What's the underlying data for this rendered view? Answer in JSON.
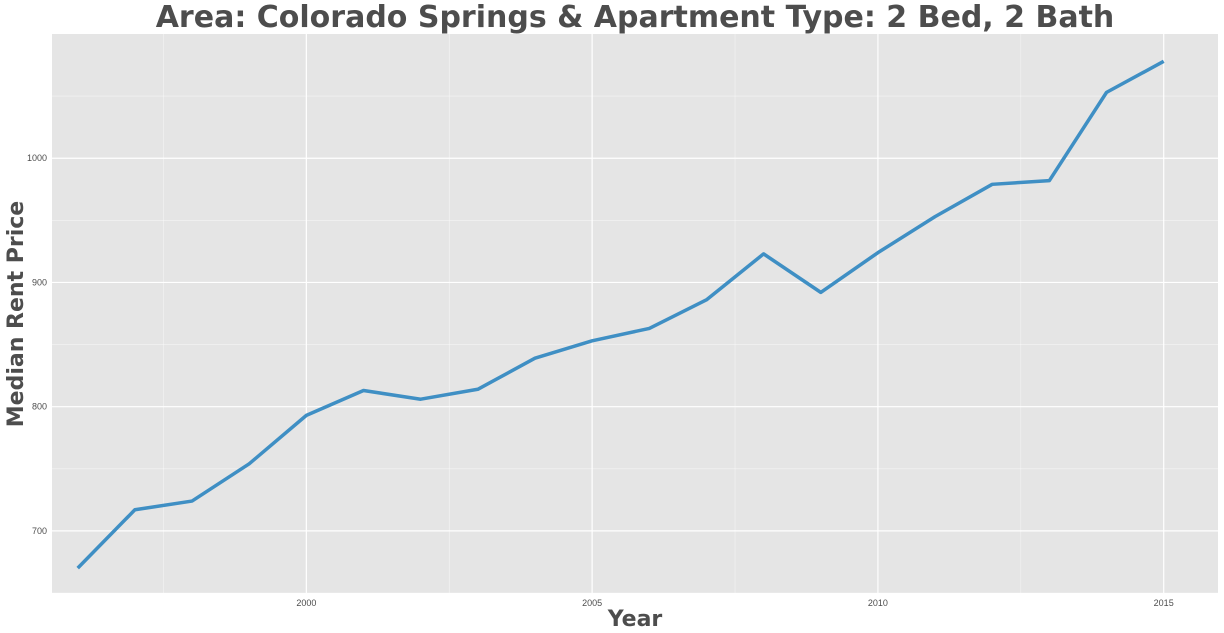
{
  "chart_data": {
    "type": "line",
    "title": "Area: Colorado Springs & Apartment Type: 2 Bed, 2 Bath",
    "xlabel": "Year",
    "ylabel": "Median Rent Price",
    "xlim": [
      1995.55,
      2015.95
    ],
    "ylim": [
      650,
      1100
    ],
    "x_ticks": [
      2000,
      2005,
      2010,
      2015
    ],
    "y_ticks": [
      700,
      800,
      900,
      1000
    ],
    "grid": true,
    "legend": "none",
    "series": [
      {
        "color": "#3f8fc4",
        "x": [
          1996,
          1997,
          1998,
          1999,
          2000,
          2001,
          2002,
          2003,
          2004,
          2005,
          2006,
          2007,
          2008,
          2009,
          2010,
          2011,
          2012,
          2013,
          2014,
          2015
        ],
        "y": [
          670,
          717,
          724,
          754,
          793,
          813,
          806,
          814,
          839,
          853,
          863,
          886,
          923,
          892,
          924,
          953,
          979,
          982,
          1053,
          1078
        ]
      }
    ],
    "colors": {
      "panel_background": "#e5e5e5",
      "grid_major": "#ffffff",
      "text": "#4d4d4d"
    }
  }
}
